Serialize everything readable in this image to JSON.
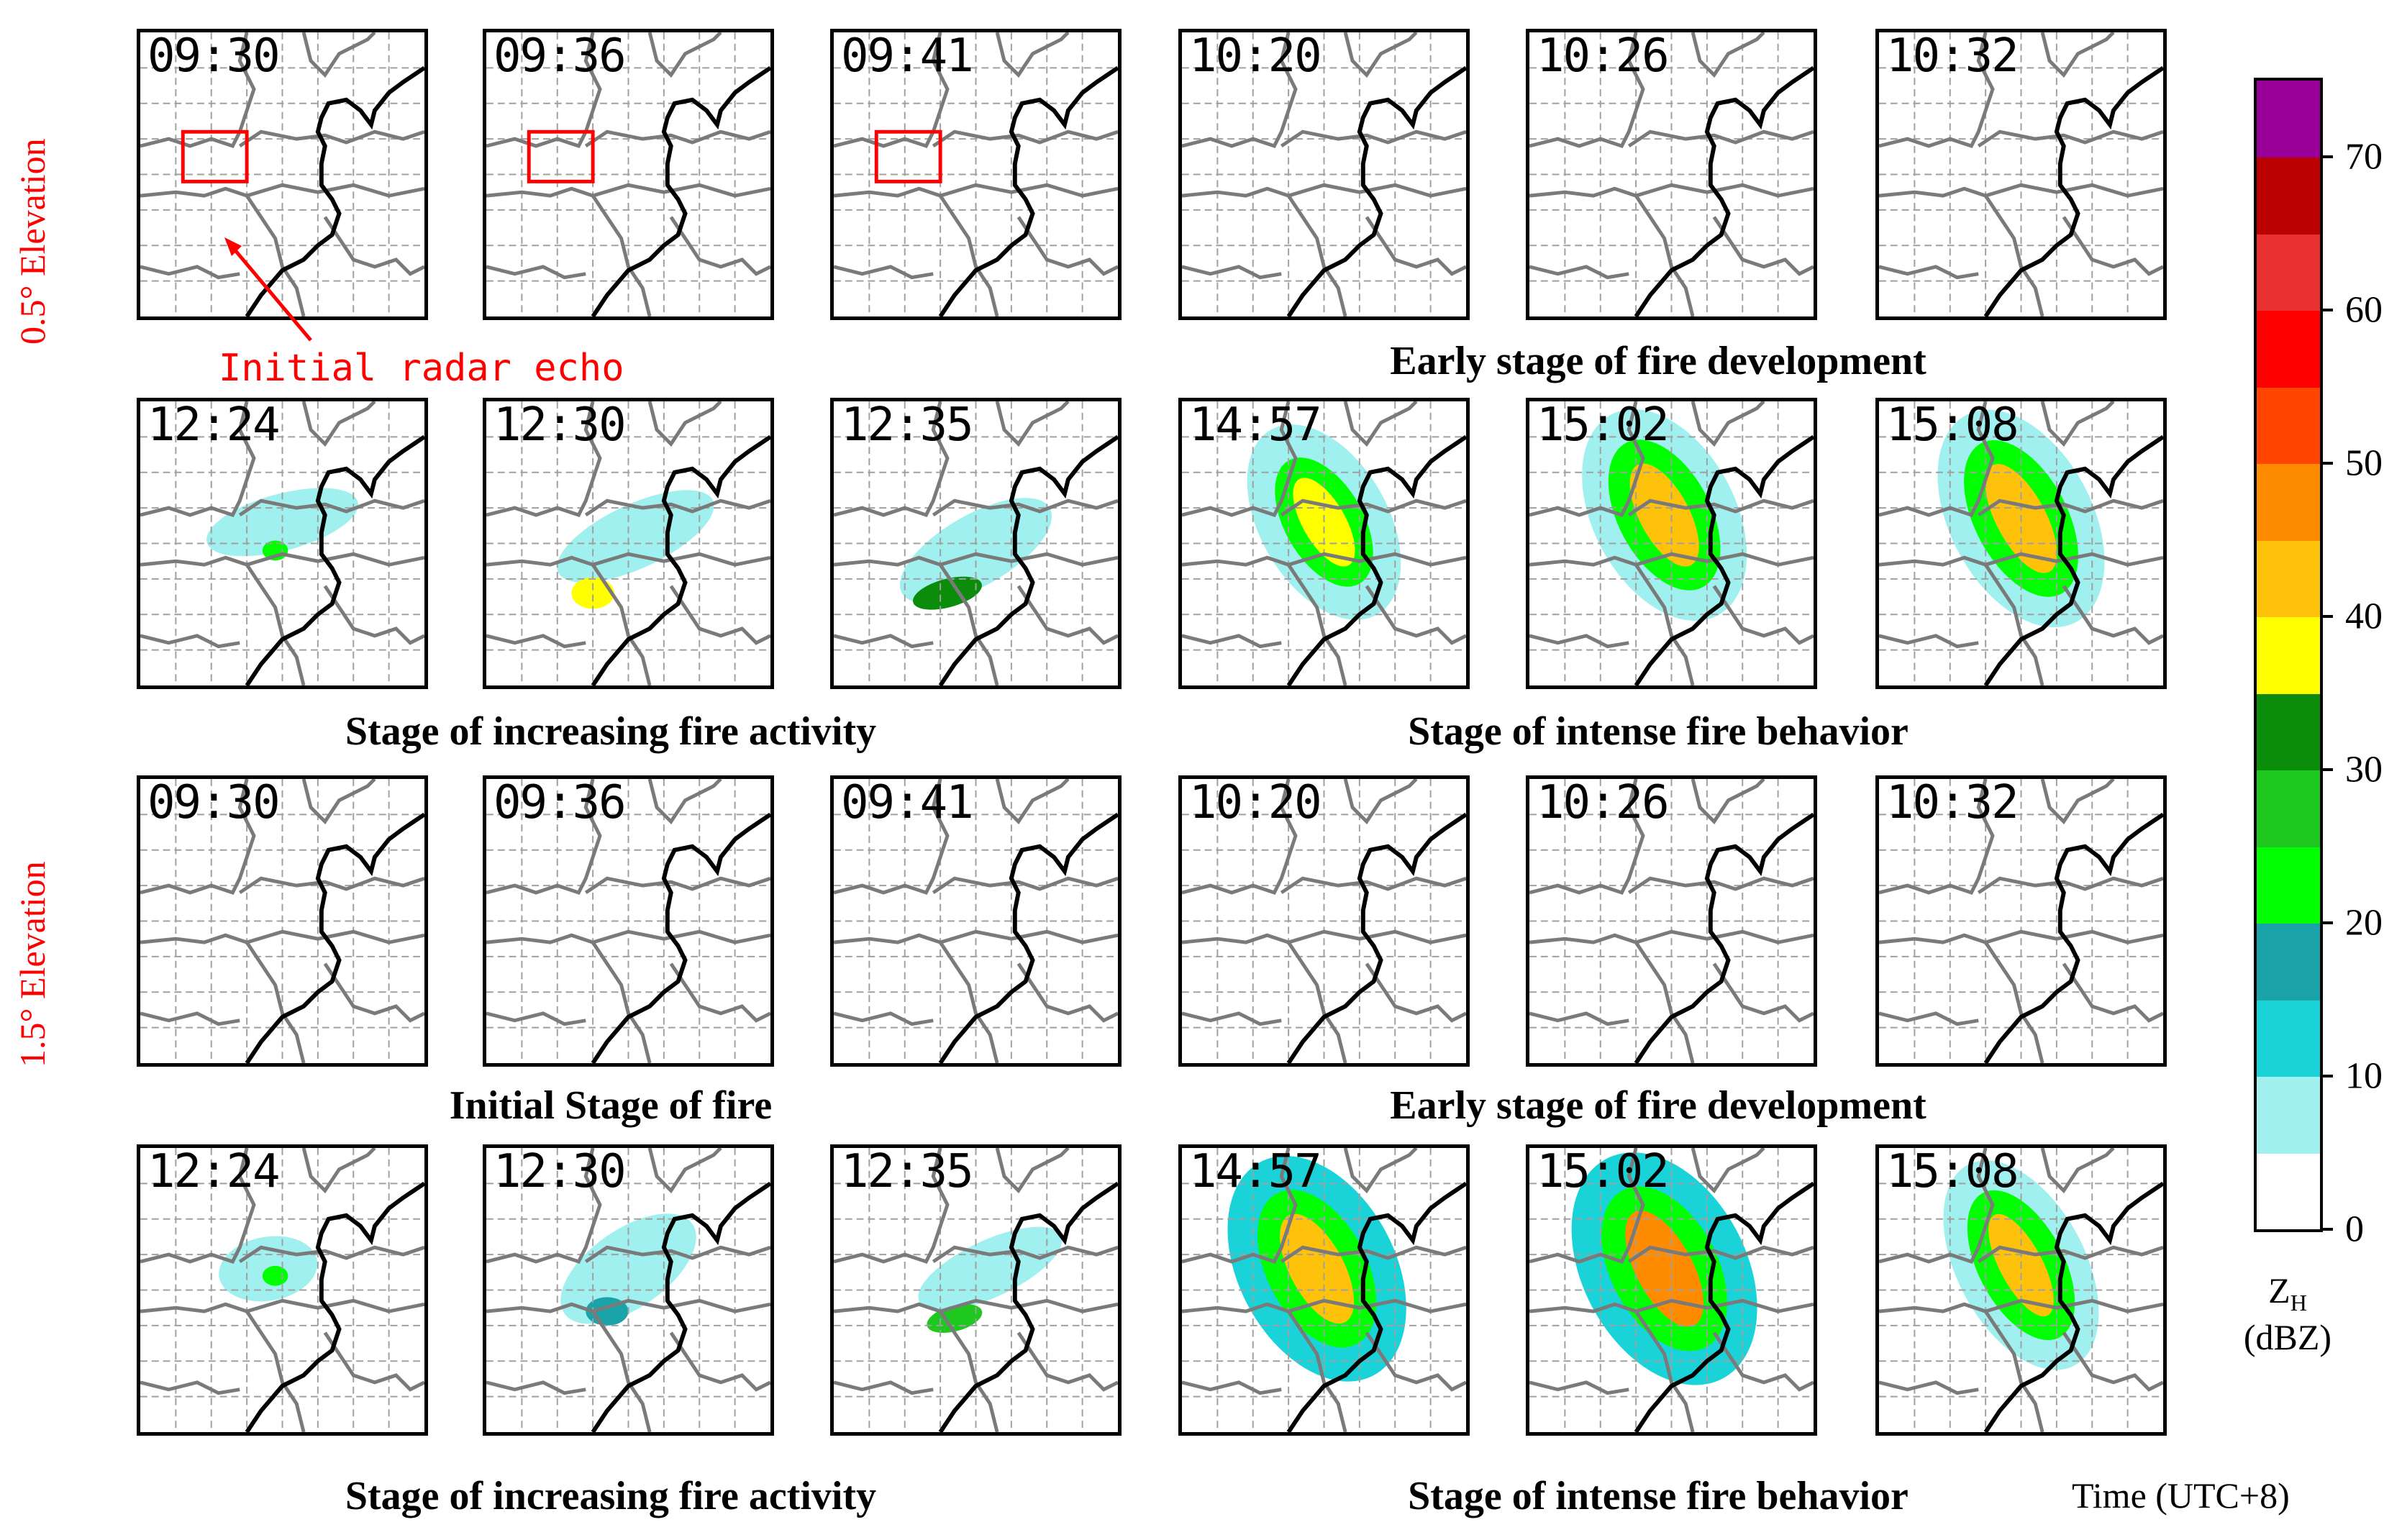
{
  "elevation_labels": [
    "0.5° Elevation",
    "1.5° Elevation"
  ],
  "annotation": "Initial radar echo",
  "rows": [
    {
      "elevation": "0.5°",
      "times": [
        "09:30",
        "09:36",
        "09:41",
        "10:20",
        "10:26",
        "10:32"
      ],
      "caption_left": "",
      "caption_right": "Early stage of fire development"
    },
    {
      "elevation": "0.5°",
      "times": [
        "12:24",
        "12:30",
        "12:35",
        "14:57",
        "15:02",
        "15:08"
      ],
      "caption_left": "Stage of increasing fire activity",
      "caption_right": "Stage of intense fire behavior"
    },
    {
      "elevation": "1.5°",
      "times": [
        "09:30",
        "09:36",
        "09:41",
        "10:20",
        "10:26",
        "10:32"
      ],
      "caption_left": "Initial Stage of  fire",
      "caption_right": "Early stage of fire development"
    },
    {
      "elevation": "1.5°",
      "times": [
        "12:24",
        "12:30",
        "12:35",
        "14:57",
        "15:02",
        "15:08"
      ],
      "caption_left": "Stage of increasing fire activity",
      "caption_right": "Stage of intense fire behavior"
    }
  ],
  "colorbar": {
    "label_main": "Z",
    "label_sub": "H",
    "unit": "(dBZ)",
    "ticks": [
      0,
      10,
      20,
      30,
      40,
      50,
      60,
      70
    ],
    "min": 0,
    "max": 75,
    "levels": [
      0,
      5,
      10,
      15,
      20,
      25,
      30,
      35,
      40,
      45,
      50,
      55,
      60,
      65,
      70,
      75
    ],
    "colors": [
      "#ffffff",
      "#9ff0ee",
      "#1ad3d8",
      "#1aa3a8",
      "#00ff00",
      "#1ec81e",
      "#0b8c0b",
      "#ffff00",
      "#ffc20a",
      "#ff8c00",
      "#ff4500",
      "#ff0000",
      "#e8302e",
      "#bb0000",
      "#990099"
    ]
  },
  "time_note": "Time (UTC+8)",
  "chart_data": {
    "type": "heatmap",
    "title": "",
    "panels_per_row": 6,
    "rows": 4,
    "variable": "Z_H (dBZ)",
    "value_range": [
      0,
      75
    ],
    "colorbar_ticks": [
      0,
      10,
      20,
      30,
      40,
      50,
      60,
      70
    ],
    "grid": true,
    "legend": "right"
  }
}
